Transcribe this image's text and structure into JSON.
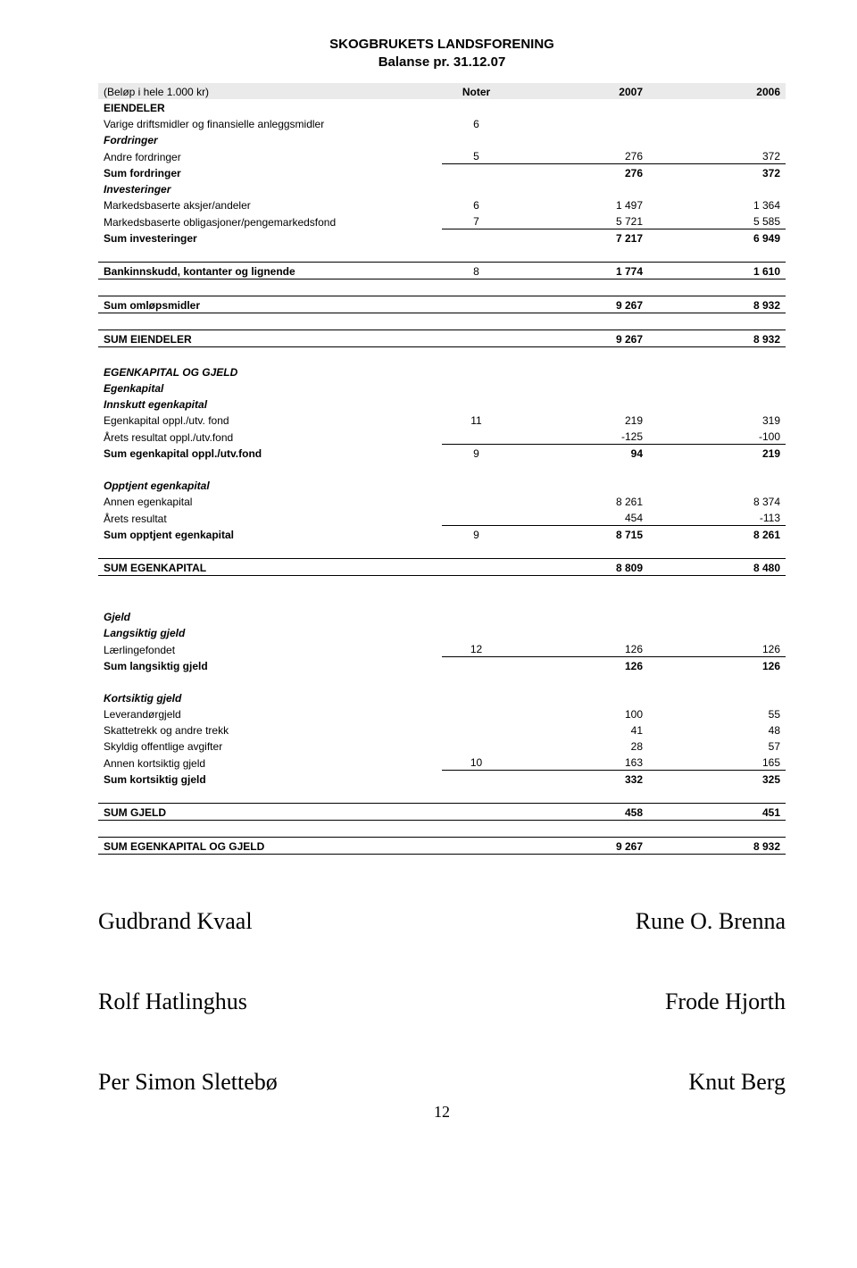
{
  "title_line1": "SKOGBRUKETS LANDSFORENING",
  "title_line2": "Balanse pr. 31.12.07",
  "unit_note": "(Beløp i hele 1.000 kr)",
  "headers": {
    "noter": "Noter",
    "y2007": "2007",
    "y2006": "2006"
  },
  "rows": {
    "eiendeler": "EIENDELER",
    "varige": {
      "label": "Varige driftsmidler og finansielle anleggsmidler",
      "note": "6"
    },
    "fordringer_hdr": "Fordringer",
    "andre_fordringer": {
      "label": "Andre fordringer",
      "note": "5",
      "v07": "276",
      "v06": "372"
    },
    "sum_fordringer": {
      "label": "Sum fordringer",
      "v07": "276",
      "v06": "372"
    },
    "investeringer_hdr": "Investeringer",
    "aksjer": {
      "label": "Markedsbaserte aksjer/andeler",
      "note": "6",
      "v07": "1 497",
      "v06": "1 364"
    },
    "oblig": {
      "label": "Markedsbaserte obligasjoner/pengemarkedsfond",
      "note": "7",
      "v07": "5 721",
      "v06": "5 585"
    },
    "sum_invest": {
      "label": "Sum investeringer",
      "v07": "7 217",
      "v06": "6 949"
    },
    "bank": {
      "label": "Bankinnskudd, kontanter og lignende",
      "note": "8",
      "v07": "1 774",
      "v06": "1 610"
    },
    "sum_omlop": {
      "label": "Sum omløpsmidler",
      "v07": "9 267",
      "v06": "8 932"
    },
    "sum_eiendeler": {
      "label": "SUM EIENDELER",
      "v07": "9 267",
      "v06": "8 932"
    },
    "egk_gjeld": "EGENKAPITAL OG GJELD",
    "egenkapital_hdr": "Egenkapital",
    "innskutt_hdr": "Innskutt egenkapital",
    "egk_oppl": {
      "label": "Egenkapital oppl./utv. fond",
      "note": "11",
      "v07": "219",
      "v06": "319"
    },
    "arets_res_fond": {
      "label": "Årets resultat oppl./utv.fond",
      "v07": "-125",
      "v06": "-100"
    },
    "sum_egk_oppl": {
      "label": "Sum egenkapital oppl./utv.fond",
      "note": "9",
      "v07": "94",
      "v06": "219"
    },
    "opptjent_hdr": "Opptjent egenkapital",
    "annen_egk": {
      "label": "Annen egenkapital",
      "v07": "8 261",
      "v06": "8 374"
    },
    "arets_res": {
      "label": "Årets resultat",
      "v07": "454",
      "v06": "-113"
    },
    "sum_opptjent": {
      "label": "Sum opptjent egenkapital",
      "note": "9",
      "v07": "8 715",
      "v06": "8 261"
    },
    "sum_egk": {
      "label": "SUM EGENKAPITAL",
      "v07": "8 809",
      "v06": "8 480"
    },
    "gjeld_hdr": "Gjeld",
    "langsiktig_hdr": "Langsiktig gjeld",
    "laerl": {
      "label": "Lærlingefondet",
      "note": "12",
      "v07": "126",
      "v06": "126"
    },
    "sum_lang": {
      "label": "Sum langsiktig gjeld",
      "v07": "126",
      "v06": "126"
    },
    "kortsiktig_hdr": "Kortsiktig gjeld",
    "lev": {
      "label": "Leverandørgjeld",
      "v07": "100",
      "v06": "55"
    },
    "skatt": {
      "label": "Skattetrekk og andre trekk",
      "v07": "41",
      "v06": "48"
    },
    "skyldig": {
      "label": "Skyldig offentlige avgifter",
      "v07": "28",
      "v06": "57"
    },
    "annen_kort": {
      "label": "Annen kortsiktig gjeld",
      "note": "10",
      "v07": "163",
      "v06": "165"
    },
    "sum_kort": {
      "label": "Sum kortsiktig gjeld",
      "v07": "332",
      "v06": "325"
    },
    "sum_gjeld": {
      "label": "SUM GJELD",
      "v07": "458",
      "v06": "451"
    },
    "sum_egk_gjeld": {
      "label": "SUM EGENKAPITAL OG GJELD",
      "v07": "9 267",
      "v06": "8 932"
    }
  },
  "signatures": {
    "r1l": "Gudbrand Kvaal",
    "r1r": "Rune O. Brenna",
    "r2l": "Rolf Hatlinghus",
    "r2r": "Frode Hjorth",
    "r3l": "Per Simon Slettebø",
    "r3r": "Knut Berg"
  },
  "page_number": "12"
}
